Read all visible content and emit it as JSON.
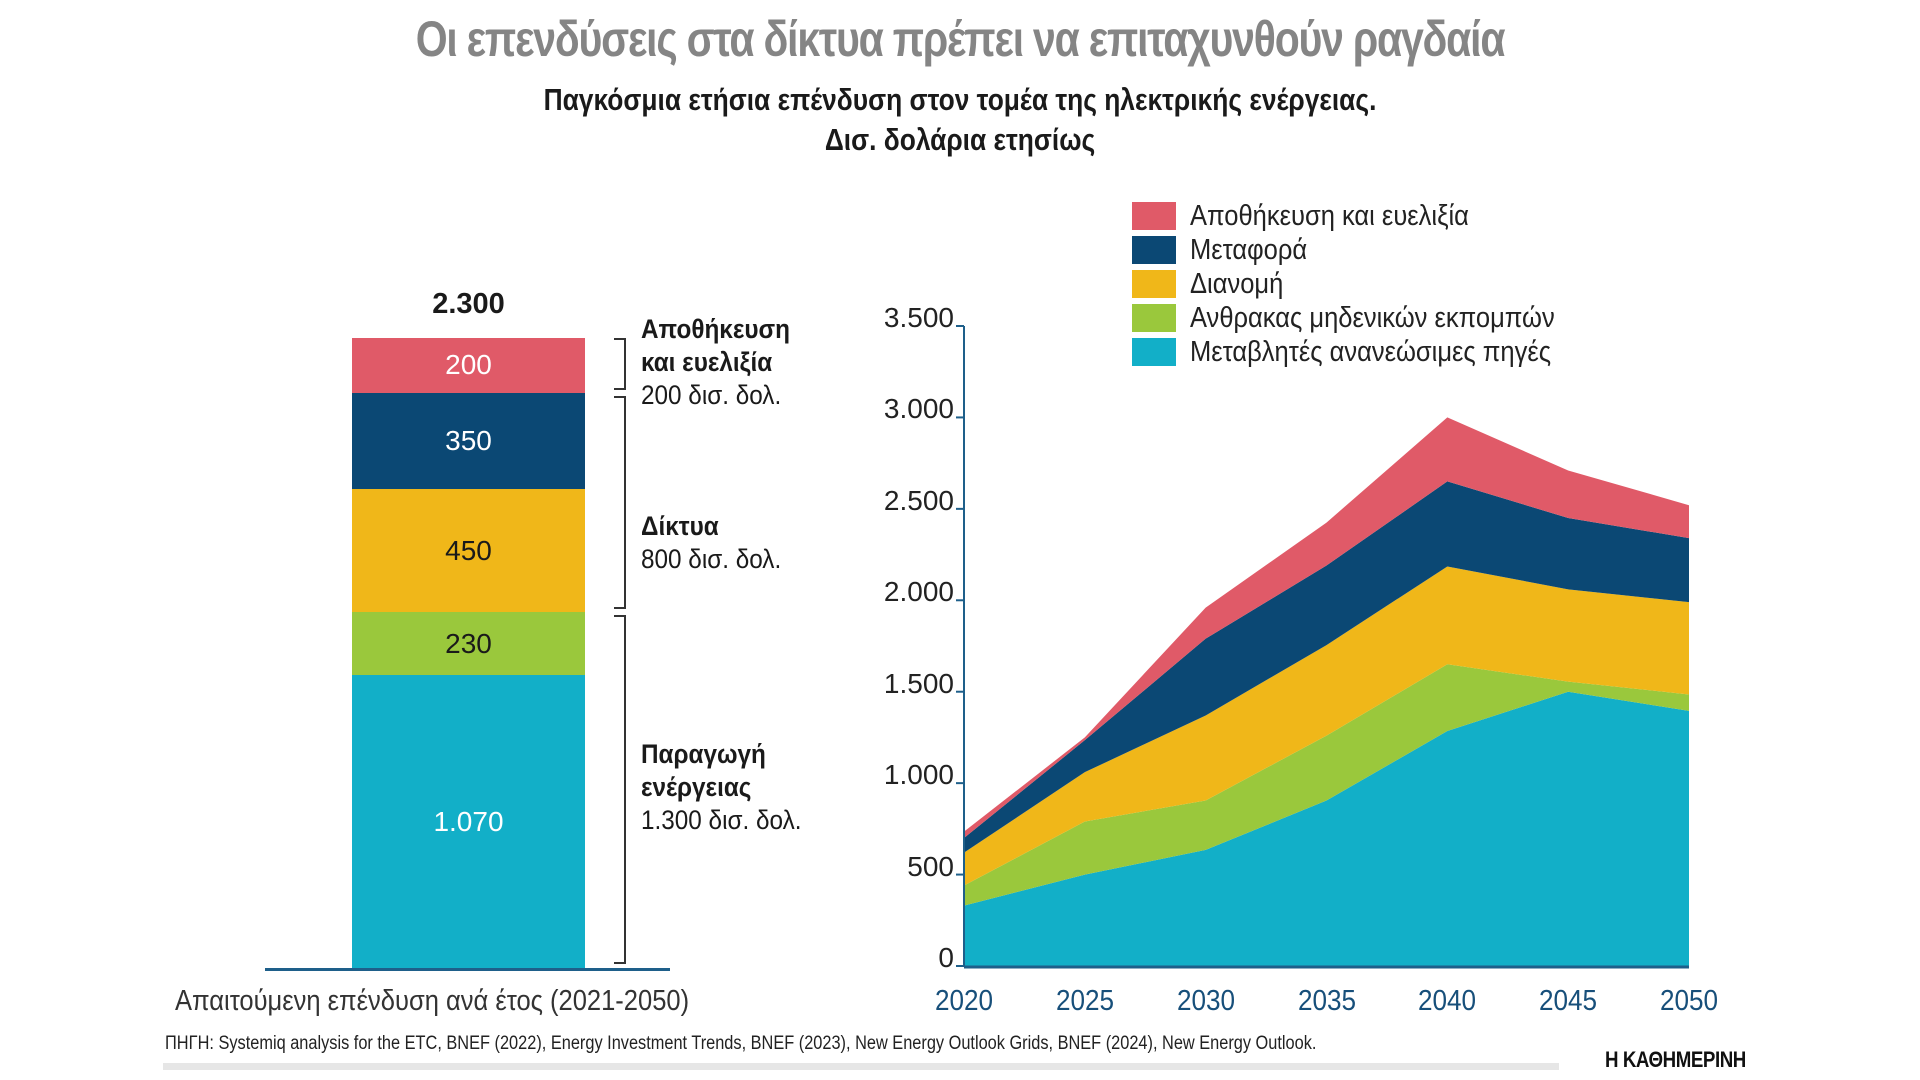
{
  "title": "Οι επενδύσεις στα δίκτυα πρέπει να επιταχυνθούν ραγδαία",
  "subtitle_line1": "Παγκόσμια ετήσια επένδυση στον τομέα της ηλεκτρικής ενέργειας.",
  "subtitle_line2": "Δισ. δολάρια ετησίως",
  "colors": {
    "storage": "#E05A68",
    "transmission": "#0B4874",
    "distribution": "#F0B719",
    "zero_emission_coal": "#9AC83C",
    "variable_renewables": "#12AFC8",
    "axis": "#1e5f8a"
  },
  "chart_data": [
    {
      "type": "bar",
      "stacked": true,
      "title": "Απαιτούμενη επένδυση ανά έτος (2021-2050)",
      "categories": [
        "Απαιτούμενη επένδυση ανά έτος (2021-2050)"
      ],
      "total": 2300,
      "total_label": "2.300",
      "series": [
        {
          "name": "Μεταβλητές ανανεώσιμες πηγές",
          "key": "variable_renewables",
          "values": [
            1070
          ],
          "label": "1.070",
          "label_color": "#ffffff"
        },
        {
          "name": "Ανθρακας μηδενικών εκπομπών",
          "key": "zero_emission_coal",
          "values": [
            230
          ],
          "label": "230",
          "label_color": "#1a1a1a"
        },
        {
          "name": "Διανομή",
          "key": "distribution",
          "values": [
            450
          ],
          "label": "450",
          "label_color": "#1a1a1a"
        },
        {
          "name": "Μεταφορά",
          "key": "transmission",
          "values": [
            350
          ],
          "label": "350",
          "label_color": "#ffffff"
        },
        {
          "name": "Αποθήκευση και ευελιξία",
          "key": "storage",
          "values": [
            200
          ],
          "label": "200",
          "label_color": "#ffffff"
        }
      ],
      "annotations": [
        {
          "title_lines": [
            "Αποθήκευση",
            "και ευελιξία"
          ],
          "value_text": "200 δισ. δολ.",
          "from": 2100,
          "to": 2300
        },
        {
          "title_lines": [
            "Δίκτυα"
          ],
          "value_text": "800 δισ. δολ.",
          "from": 1300,
          "to": 2100
        },
        {
          "title_lines": [
            "Παραγωγή",
            "ενέργειας"
          ],
          "value_text": "1.300 δισ. δολ.",
          "from": 0,
          "to": 1300
        }
      ],
      "ylim": [
        0,
        2300
      ]
    },
    {
      "type": "area",
      "stacked": true,
      "x": [
        2020,
        2025,
        2030,
        2035,
        2040,
        2045,
        2050
      ],
      "xtick_labels": [
        "2020",
        "2025",
        "2030",
        "2035",
        "2040",
        "2045",
        "2050"
      ],
      "ylim": [
        0,
        3500
      ],
      "yticks": [
        0,
        500,
        1000,
        1500,
        2000,
        2500,
        3000,
        3500
      ],
      "ytick_labels": [
        "0",
        "500",
        "1.000",
        "1.500",
        "2.000",
        "2.500",
        "3.000",
        "3.500"
      ],
      "xlabel": "",
      "ylabel": "",
      "grid": false,
      "legend_position": "top-right",
      "series": [
        {
          "name": "Μεταβλητές ανανεώσιμες πηγές",
          "key": "variable_renewables",
          "values": [
            330,
            500,
            635,
            905,
            1285,
            1500,
            1395
          ]
        },
        {
          "name": "Ανθρακας μηδενικών εκπομπών",
          "key": "zero_emission_coal",
          "values": [
            110,
            290,
            270,
            355,
            365,
            55,
            90
          ]
        },
        {
          "name": "Διανομή",
          "key": "distribution",
          "values": [
            180,
            270,
            465,
            495,
            535,
            505,
            505
          ]
        },
        {
          "name": "Μεταφορά",
          "key": "transmission",
          "values": [
            80,
            175,
            420,
            435,
            465,
            390,
            350
          ]
        },
        {
          "name": "Αποθήκευση και ευελιξία",
          "key": "storage",
          "values": [
            35,
            15,
            170,
            235,
            350,
            260,
            180
          ]
        }
      ],
      "legend": [
        "Αποθήκευση και ευελιξία",
        "Μεταφορά",
        "Διανομή",
        "Ανθρακας μηδενικών εκπομπών",
        "Μεταβλητές ανανεώσιμες πηγές"
      ]
    }
  ],
  "bar_caption": "Απαιτούμενη επένδυση ανά έτος (2021-2050)",
  "source": "ΠΗΓΗ: Systemiq analysis for the ETC, BNEF (2022), Energy Investment Trends, BNEF (2023), New Energy Outlook Grids, BNEF (2024), New Energy Outlook.",
  "brand": "Η ΚΑΘΗΜΕΡΙΝΗ"
}
